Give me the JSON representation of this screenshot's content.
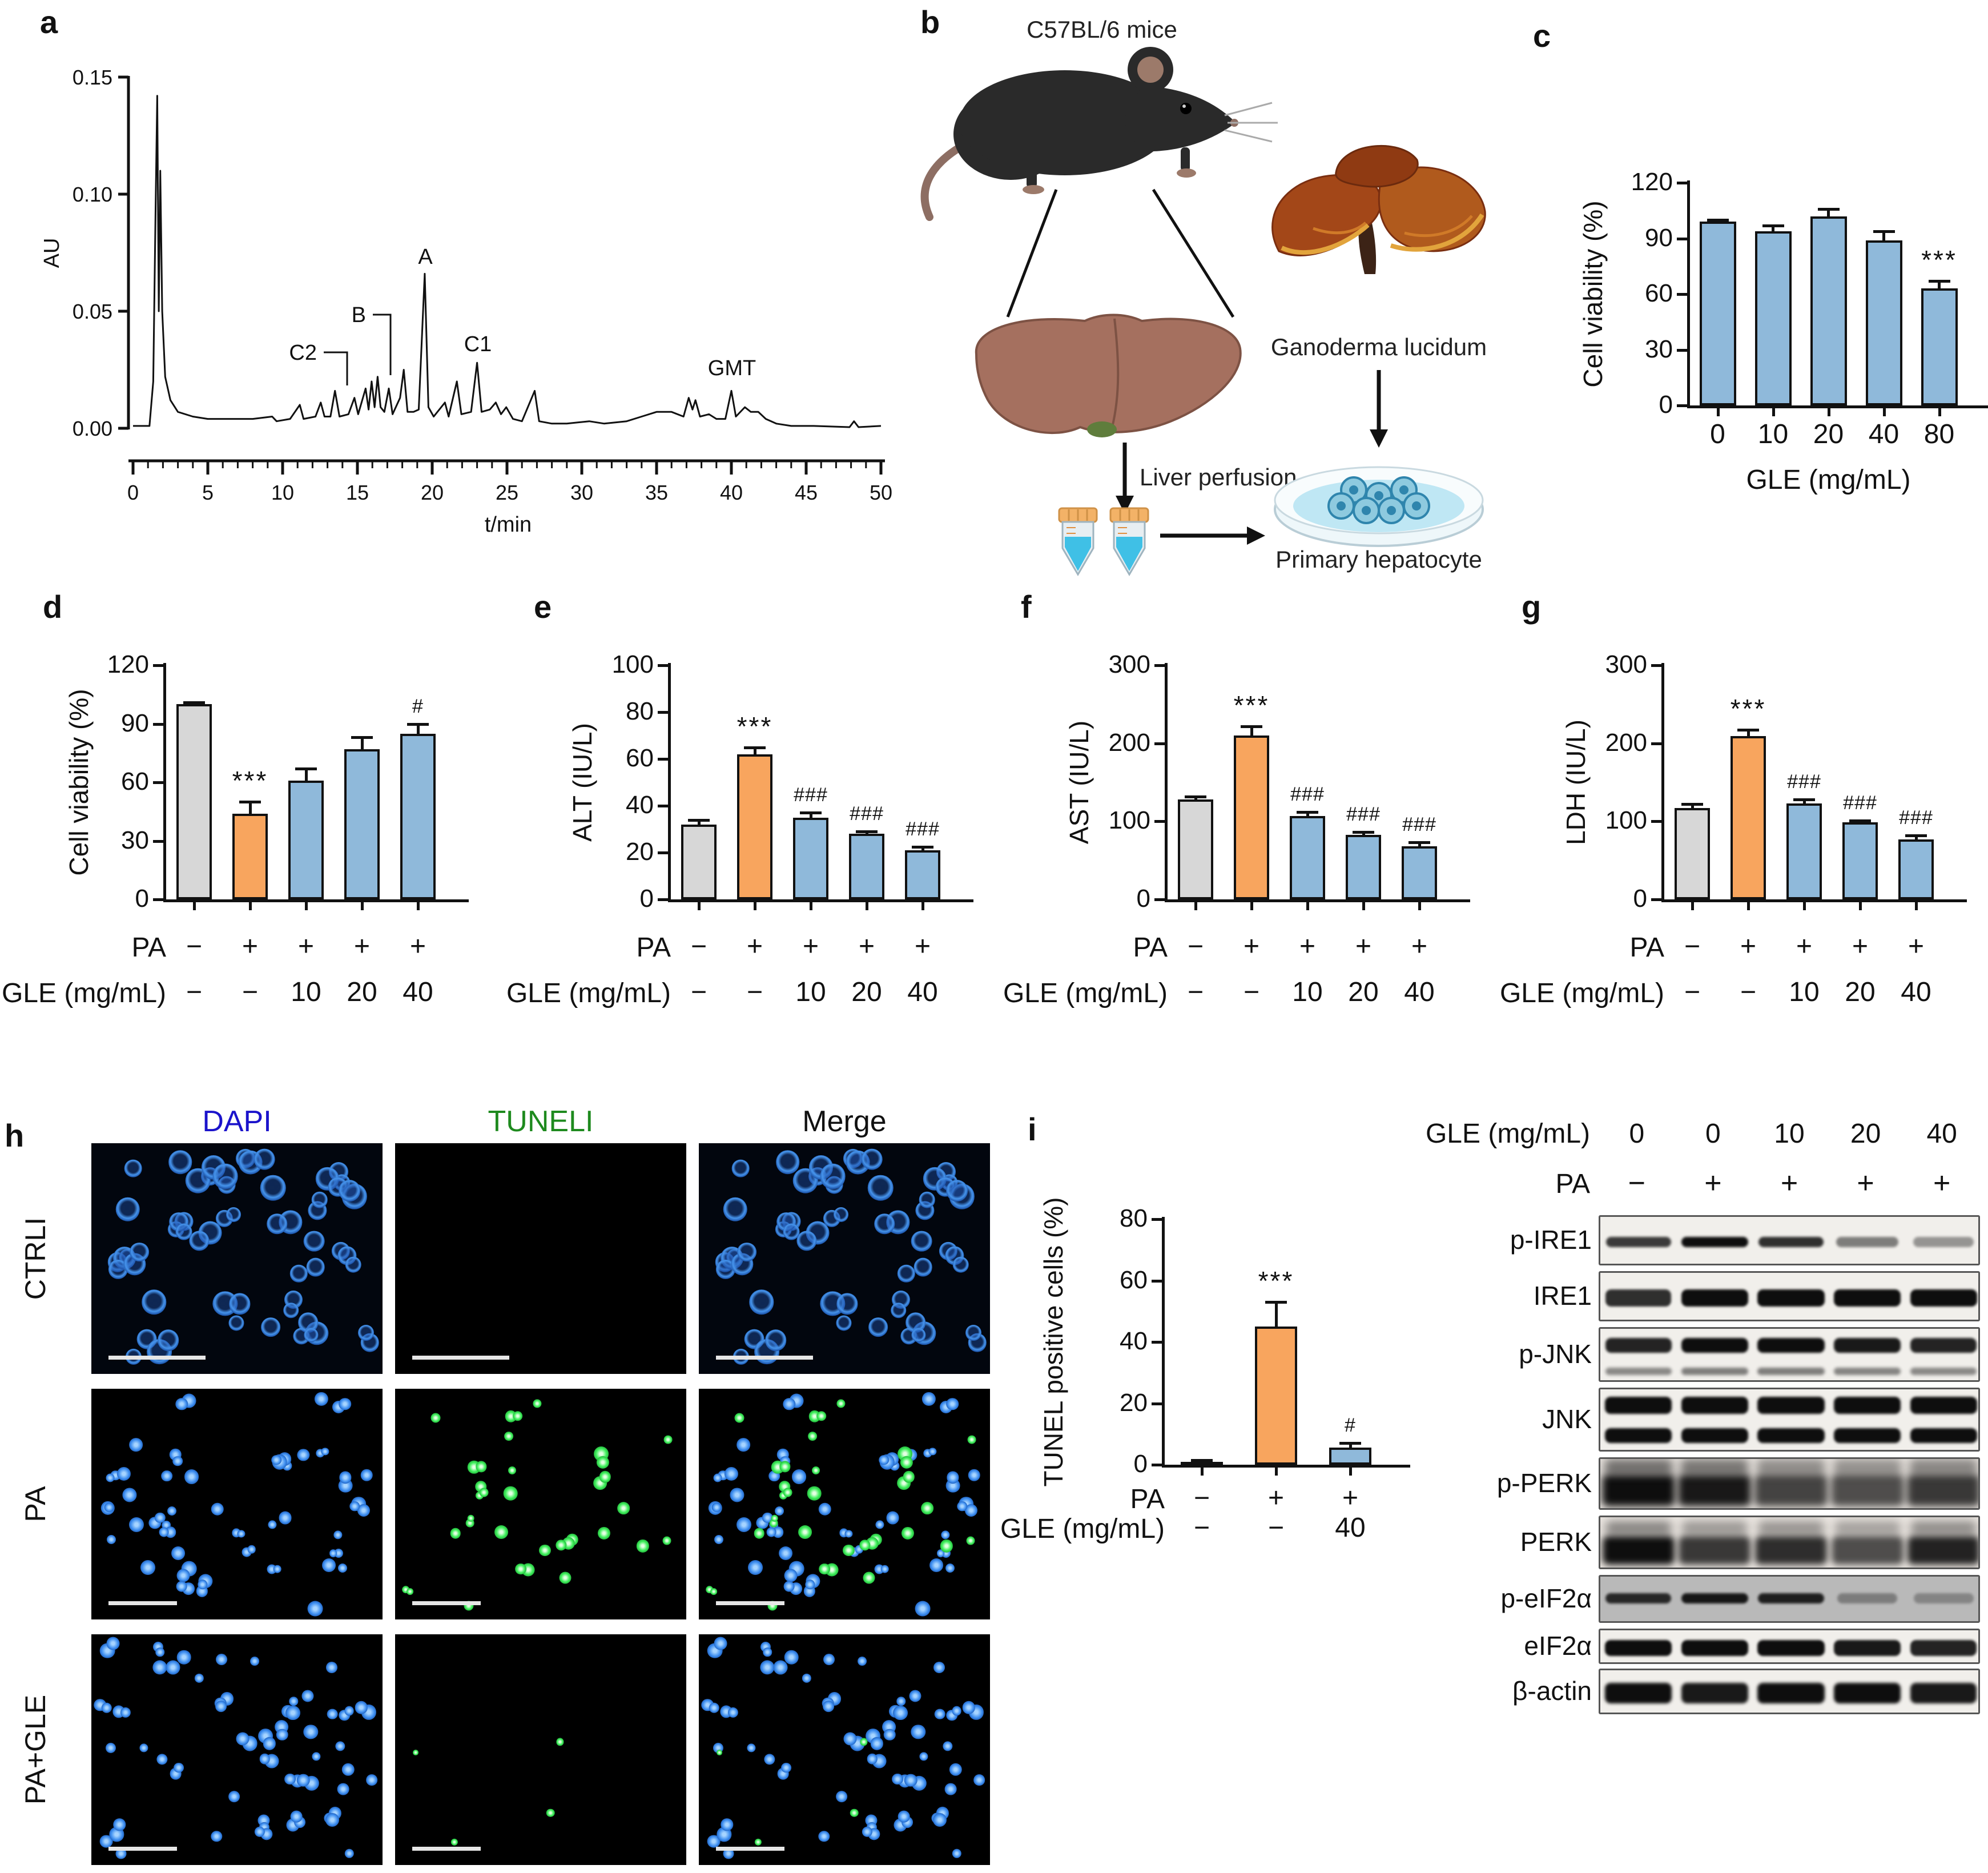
{
  "palette": {
    "blue": "#8fb9da",
    "orange": "#f8a55e",
    "gray": "#d7d7d7",
    "black": "#1a1a1a"
  },
  "panel_b": {
    "letter": "b",
    "mouse_label": "C57BL/6 mice",
    "mushroom_label": "Ganoderma lucidum",
    "perfusion_label": "Liver perfusion",
    "hepatocyte_label": "Primary hepatocyte"
  },
  "chart_data": {
    "a": {
      "type": "line",
      "letter": "a",
      "ylabel": "AU",
      "xlabel": "t/min",
      "xlim": [
        0,
        50
      ],
      "ylim": [
        0,
        0.15
      ],
      "xticks": [
        0,
        5,
        10,
        15,
        20,
        25,
        30,
        35,
        40,
        45,
        50
      ],
      "ytick_values": [
        0,
        0.05,
        0.1,
        0.15
      ],
      "ytick_labels": [
        "0.00",
        "0.05",
        "0.10",
        "0.15"
      ],
      "peaks": [
        {
          "label": "C2",
          "t": 13.5,
          "au": 0.016
        },
        {
          "label": "B",
          "t": 16.35,
          "au": 0.022
        },
        {
          "label": "A",
          "t": 19.5,
          "au": 0.066
        },
        {
          "label": "C1",
          "t": 23.0,
          "au": 0.028
        },
        {
          "label": "GMT",
          "t": 40.0,
          "au": 0.016
        }
      ],
      "trace": [
        [
          0,
          0.001
        ],
        [
          1.1,
          0.001
        ],
        [
          1.35,
          0.02
        ],
        [
          1.5,
          0.09
        ],
        [
          1.62,
          0.142
        ],
        [
          1.72,
          0.05
        ],
        [
          1.82,
          0.11
        ],
        [
          1.95,
          0.05
        ],
        [
          2.15,
          0.022
        ],
        [
          2.5,
          0.012
        ],
        [
          3,
          0.007
        ],
        [
          4,
          0.005
        ],
        [
          5,
          0.004
        ],
        [
          6.5,
          0.004
        ],
        [
          8,
          0.004
        ],
        [
          9.3,
          0.005
        ],
        [
          9.6,
          0.003
        ],
        [
          10.5,
          0.004
        ],
        [
          11.15,
          0.01
        ],
        [
          11.4,
          0.004
        ],
        [
          12.2,
          0.005
        ],
        [
          12.55,
          0.011
        ],
        [
          12.8,
          0.005
        ],
        [
          13.2,
          0.005
        ],
        [
          13.5,
          0.016
        ],
        [
          13.8,
          0.005
        ],
        [
          14.4,
          0.006
        ],
        [
          14.8,
          0.013
        ],
        [
          15.05,
          0.006
        ],
        [
          15.55,
          0.017
        ],
        [
          15.75,
          0.008
        ],
        [
          15.95,
          0.02
        ],
        [
          16.15,
          0.009
        ],
        [
          16.35,
          0.022
        ],
        [
          16.55,
          0.009
        ],
        [
          16.8,
          0.007
        ],
        [
          17.1,
          0.017
        ],
        [
          17.35,
          0.006
        ],
        [
          17.85,
          0.013
        ],
        [
          18.1,
          0.025
        ],
        [
          18.35,
          0.007
        ],
        [
          18.75,
          0.007
        ],
        [
          19.1,
          0.008
        ],
        [
          19.5,
          0.066
        ],
        [
          19.75,
          0.009
        ],
        [
          20.1,
          0.005
        ],
        [
          20.85,
          0.011
        ],
        [
          21.1,
          0.005
        ],
        [
          21.65,
          0.02
        ],
        [
          21.95,
          0.006
        ],
        [
          22.6,
          0.007
        ],
        [
          23,
          0.028
        ],
        [
          23.3,
          0.007
        ],
        [
          23.85,
          0.008
        ],
        [
          24.25,
          0.011
        ],
        [
          24.6,
          0.006
        ],
        [
          24.95,
          0.009
        ],
        [
          25.4,
          0.004
        ],
        [
          26,
          0.003
        ],
        [
          26.85,
          0.016
        ],
        [
          27.15,
          0.003
        ],
        [
          28,
          0.002
        ],
        [
          29,
          0.002
        ],
        [
          30.5,
          0.003
        ],
        [
          31.5,
          0.002
        ],
        [
          33,
          0.003
        ],
        [
          34,
          0.005
        ],
        [
          35,
          0.007
        ],
        [
          36,
          0.007
        ],
        [
          36.8,
          0.005
        ],
        [
          37.15,
          0.013
        ],
        [
          37.4,
          0.008
        ],
        [
          37.6,
          0.012
        ],
        [
          37.9,
          0.005
        ],
        [
          38.5,
          0.006
        ],
        [
          39,
          0.004
        ],
        [
          39.6,
          0.004
        ],
        [
          40,
          0.016
        ],
        [
          40.3,
          0.005
        ],
        [
          40.9,
          0.009
        ],
        [
          41.3,
          0.007
        ],
        [
          41.8,
          0.007
        ],
        [
          42.3,
          0.004
        ],
        [
          43,
          0.002
        ],
        [
          44,
          0.001
        ],
        [
          45.5,
          0.001
        ],
        [
          47.9,
          0.0005
        ],
        [
          48.2,
          0.003
        ],
        [
          48.5,
          0.0005
        ],
        [
          50,
          0.001
        ]
      ]
    },
    "c": {
      "type": "bar",
      "letter": "c",
      "ylabel": "Cell viability (%)",
      "xlabel": "GLE (mg/mL)",
      "categories": [
        "0",
        "10",
        "20",
        "40",
        "80"
      ],
      "values": [
        99,
        94,
        102,
        89,
        63
      ],
      "errors": [
        1,
        3,
        4,
        5,
        4
      ],
      "sig": [
        "",
        "",
        "",
        "",
        "***"
      ],
      "bar_colors": [
        "blue",
        "blue",
        "blue",
        "blue",
        "blue"
      ],
      "ylim": [
        0,
        120
      ],
      "yticks": [
        0,
        30,
        60,
        90,
        120
      ]
    },
    "d": {
      "type": "bar",
      "letter": "d",
      "ylabel": "Cell viability (%)",
      "values": [
        100,
        44,
        61,
        77,
        85
      ],
      "errors": [
        1,
        6,
        6,
        6,
        5
      ],
      "sig": [
        "",
        "***",
        "",
        "",
        "#"
      ],
      "bar_colors": [
        "gray",
        "orange",
        "blue",
        "blue",
        "blue"
      ],
      "ylim": [
        0,
        120
      ],
      "yticks": [
        0,
        30,
        60,
        90,
        120
      ],
      "rows": [
        {
          "label": "PA",
          "values": [
            "−",
            "+",
            "+",
            "+",
            "+"
          ]
        },
        {
          "label": "GLE (mg/mL)",
          "values": [
            "−",
            "−",
            "10",
            "20",
            "40"
          ]
        }
      ]
    },
    "e": {
      "type": "bar",
      "letter": "e",
      "ylabel": "ALT (IU/L)",
      "values": [
        32,
        62,
        35,
        28,
        21
      ],
      "errors": [
        2,
        3,
        2,
        1,
        1.5
      ],
      "sig": [
        "",
        "***",
        "###",
        "###",
        "###"
      ],
      "bar_colors": [
        "gray",
        "orange",
        "blue",
        "blue",
        "blue"
      ],
      "ylim": [
        0,
        100
      ],
      "yticks": [
        0,
        20,
        40,
        60,
        80,
        100
      ],
      "rows": [
        {
          "label": "PA",
          "values": [
            "−",
            "+",
            "+",
            "+",
            "+"
          ]
        },
        {
          "label": "GLE (mg/mL)",
          "values": [
            "−",
            "−",
            "10",
            "20",
            "40"
          ]
        }
      ]
    },
    "f": {
      "type": "bar",
      "letter": "f",
      "ylabel": "AST (IU/L)",
      "values": [
        128,
        210,
        107,
        83,
        68
      ],
      "errors": [
        4,
        12,
        5,
        3,
        5
      ],
      "sig": [
        "",
        "***",
        "###",
        "###",
        "###"
      ],
      "bar_colors": [
        "gray",
        "orange",
        "blue",
        "blue",
        "blue"
      ],
      "ylim": [
        0,
        300
      ],
      "yticks": [
        0,
        100,
        200,
        300
      ],
      "rows": [
        {
          "label": "PA",
          "values": [
            "−",
            "+",
            "+",
            "+",
            "+"
          ]
        },
        {
          "label": "GLE (mg/mL)",
          "values": [
            "−",
            "−",
            "10",
            "20",
            "40"
          ]
        }
      ]
    },
    "g": {
      "type": "bar",
      "letter": "g",
      "ylabel": "LDH (IU/L)",
      "values": [
        117,
        209,
        123,
        99,
        77
      ],
      "errors": [
        5,
        8,
        5,
        2,
        5
      ],
      "sig": [
        "",
        "***",
        "###",
        "###",
        "###"
      ],
      "bar_colors": [
        "gray",
        "orange",
        "blue",
        "blue",
        "blue"
      ],
      "ylim": [
        0,
        300
      ],
      "yticks": [
        0,
        100,
        200,
        300
      ],
      "rows": [
        {
          "label": "PA",
          "values": [
            "−",
            "+",
            "+",
            "+",
            "+"
          ]
        },
        {
          "label": "GLE (mg/mL)",
          "values": [
            "−",
            "−",
            "10",
            "20",
            "40"
          ]
        }
      ]
    },
    "i": {
      "type": "bar",
      "letter": "i",
      "ylabel": "TUNEL positive cells (%)",
      "values": [
        1,
        45,
        5.5
      ],
      "errors": [
        0.5,
        8,
        1.5
      ],
      "sig": [
        "",
        "***",
        "#"
      ],
      "bar_colors": [
        "black",
        "orange",
        "blue"
      ],
      "ylim": [
        0,
        80
      ],
      "yticks": [
        0,
        20,
        40,
        60,
        80
      ],
      "rows": [
        {
          "label": "PA",
          "values": [
            "−",
            "+",
            "+"
          ]
        },
        {
          "label": "GLE (mg/mL)",
          "values": [
            "−",
            "−",
            "40"
          ]
        }
      ]
    }
  },
  "panel_h": {
    "letter": "h",
    "columns": [
      {
        "label": "DAPI",
        "color": "#1b13cb"
      },
      {
        "label": "TUNELI",
        "color": "#1e8a1e"
      },
      {
        "label": "Merge",
        "color": "#111111"
      }
    ],
    "rows": [
      {
        "label": "CTRLI",
        "seed": 11,
        "nucleus": "ring",
        "blue_count": 40,
        "green_count": 0
      },
      {
        "label": "PA",
        "seed": 23,
        "nucleus": "solid",
        "blue_count": 46,
        "green_count": 26
      },
      {
        "label": "PA+GLE",
        "seed": 37,
        "nucleus": "solid",
        "blue_count": 50,
        "green_count": 4
      }
    ]
  },
  "blots": {
    "header_label": "GLE (mg/mL)",
    "header_values": [
      "0",
      "0",
      "10",
      "20",
      "40"
    ],
    "pa_label": "PA",
    "pa_values": [
      "−",
      "+",
      "+",
      "+",
      "+"
    ],
    "rows": [
      {
        "label": "p-IRE1",
        "style": "thin",
        "intensities": [
          0.8,
          1,
          0.85,
          0.5,
          0.4
        ]
      },
      {
        "label": "IRE1",
        "style": "band",
        "intensities": [
          0.85,
          1,
          1,
          1,
          1
        ]
      },
      {
        "label": "p-JNK",
        "style": "double_faint",
        "intensities": [
          0.9,
          1,
          1,
          0.95,
          0.9
        ]
      },
      {
        "label": "JNK",
        "style": "double",
        "intensities": [
          1,
          1,
          1,
          1,
          1
        ]
      },
      {
        "label": "p-PERK",
        "style": "smear",
        "intensities": [
          1,
          0.95,
          0.75,
          0.7,
          0.8
        ]
      },
      {
        "label": "PERK",
        "style": "smear2",
        "intensities": [
          1,
          0.8,
          0.85,
          0.7,
          0.9
        ]
      },
      {
        "label": "p-eIF2α",
        "style": "thin_gray",
        "intensities": [
          0.85,
          0.95,
          0.9,
          0.35,
          0.3
        ]
      },
      {
        "label": "eIF2α",
        "style": "band",
        "intensities": [
          1,
          1,
          1,
          0.95,
          0.9
        ]
      },
      {
        "label": "β-actin",
        "style": "band2",
        "intensities": [
          1,
          0.95,
          1,
          1,
          0.95
        ]
      }
    ]
  }
}
